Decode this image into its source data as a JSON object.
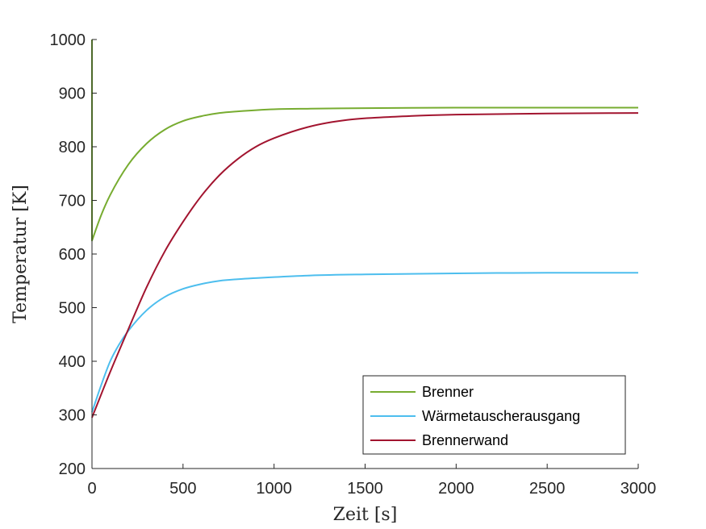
{
  "chart_data": {
    "type": "line",
    "xlabel": "Zeit [s]",
    "ylabel": "Temperatur [K]",
    "xlim": [
      0,
      3000
    ],
    "ylim": [
      200,
      1000
    ],
    "xticks": [
      0,
      500,
      1000,
      1500,
      2000,
      2500,
      3000
    ],
    "yticks": [
      200,
      300,
      400,
      500,
      600,
      700,
      800,
      900,
      1000
    ],
    "grid": false,
    "legend_position": "bottom-right",
    "series": [
      {
        "name": "Brenner",
        "color": "#77ac30",
        "x": [
          0,
          0,
          50,
          100,
          200,
          300,
          400,
          500,
          600,
          700,
          800,
          1000,
          1200,
          1500,
          2000,
          2500,
          3000
        ],
        "y": [
          1000,
          625,
          672,
          710,
          767,
          806,
          832,
          848,
          857,
          863,
          866,
          870,
          871,
          872,
          873,
          873,
          873
        ]
      },
      {
        "name": "Wärmetauscherausgang",
        "color": "#4dbeee",
        "x": [
          0,
          50,
          100,
          150,
          200,
          300,
          400,
          500,
          600,
          700,
          800,
          1000,
          1200,
          1500,
          2000,
          2500,
          3000
        ],
        "y": [
          305,
          355,
          400,
          432,
          457,
          495,
          520,
          535,
          544,
          550,
          553,
          557,
          560,
          562,
          564,
          565,
          565
        ]
      },
      {
        "name": "Brennerwand",
        "color": "#a2142f",
        "x": [
          0,
          100,
          200,
          300,
          400,
          500,
          600,
          700,
          800,
          900,
          1000,
          1200,
          1400,
          1600,
          1800,
          2000,
          2500,
          3000
        ],
        "y": [
          295,
          380,
          460,
          538,
          605,
          660,
          708,
          747,
          777,
          800,
          816,
          838,
          850,
          855,
          858,
          860,
          862,
          863
        ]
      }
    ]
  }
}
